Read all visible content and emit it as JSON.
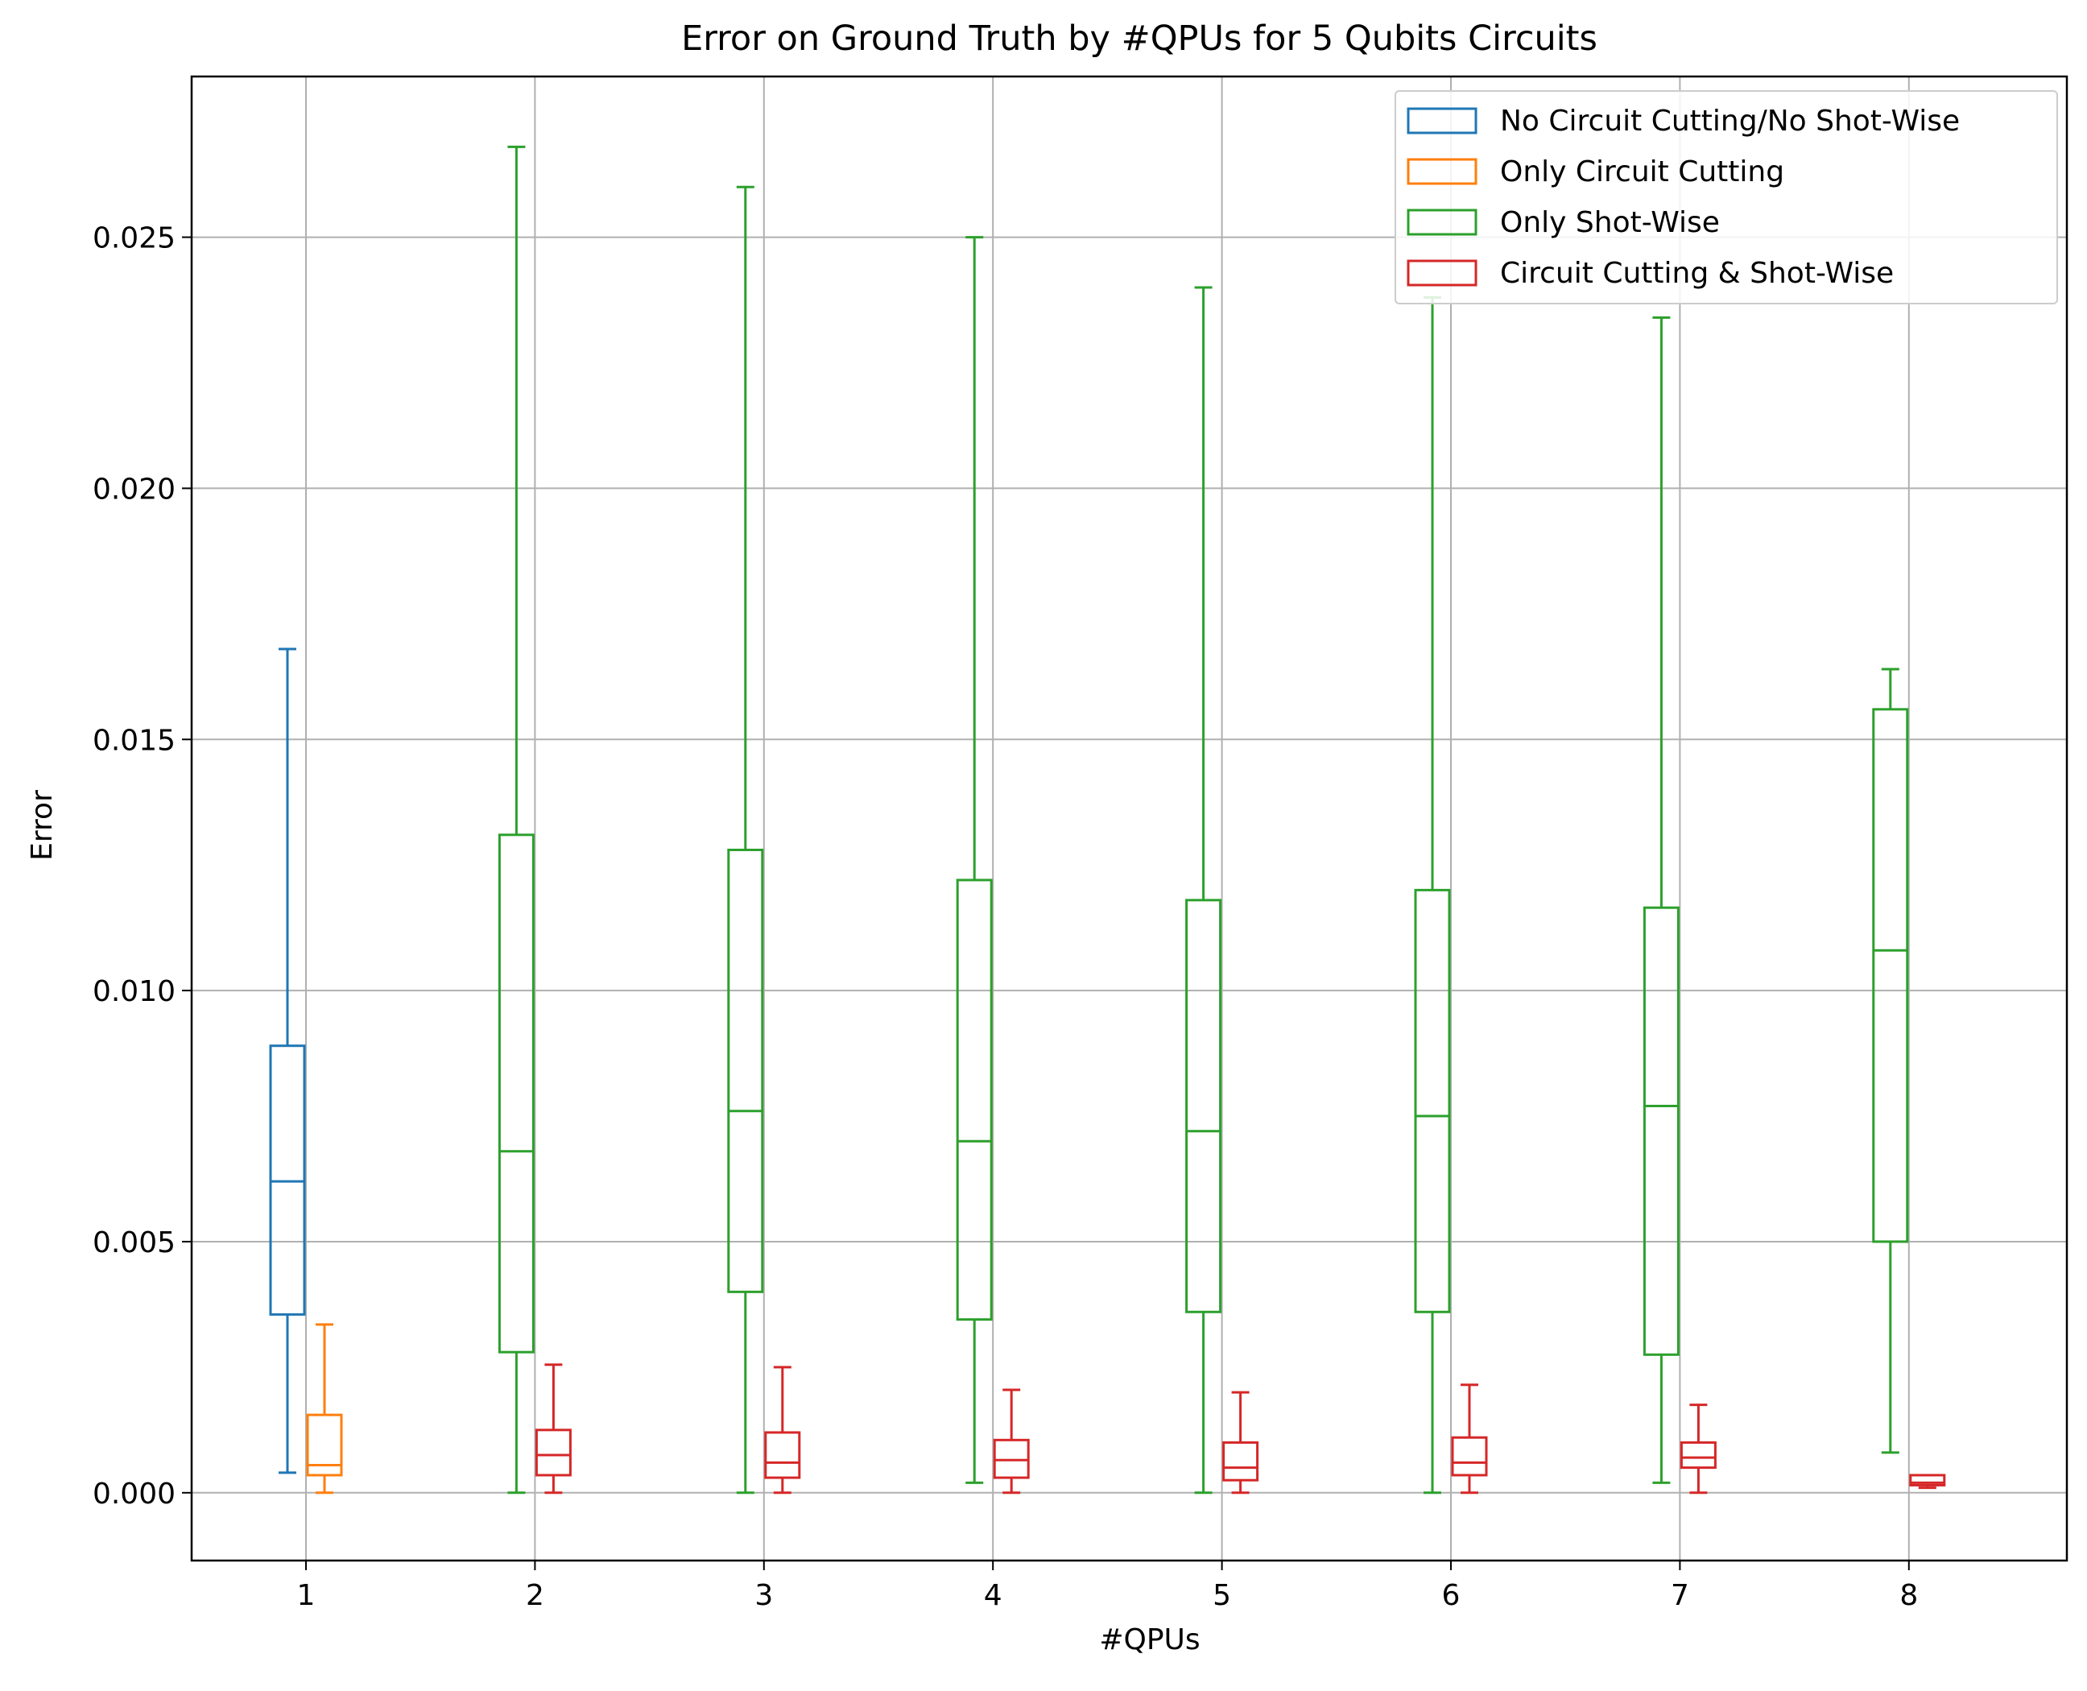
{
  "chart_data": {
    "type": "box",
    "title": "Error on Ground Truth by #QPUs for 5 Qubits Circuits",
    "xlabel": "#QPUs",
    "ylabel": "Error",
    "ylim": [
      -0.00135,
      0.0282
    ],
    "yticks": [
      0.0,
      0.005,
      0.01,
      0.015,
      0.02,
      0.025
    ],
    "ytick_labels": [
      "0.000",
      "0.005",
      "0.010",
      "0.015",
      "0.020",
      "0.025"
    ],
    "categories": [
      "1",
      "2",
      "3",
      "4",
      "5",
      "6",
      "7",
      "8"
    ],
    "grid": true,
    "legend_position": "top-right",
    "series": [
      {
        "name": "No Circuit Cutting/No Shot-Wise",
        "color": "#1f77b4",
        "boxes": [
          {
            "category": "1",
            "whisker_low": 0.0004,
            "q1": 0.00355,
            "median": 0.0062,
            "q3": 0.0089,
            "whisker_high": 0.0168
          }
        ]
      },
      {
        "name": "Only Circuit Cutting",
        "color": "#ff7f0e",
        "boxes": [
          {
            "category": "1",
            "whisker_low": 0.0,
            "q1": 0.00035,
            "median": 0.00055,
            "q3": 0.00155,
            "whisker_high": 0.00335
          }
        ]
      },
      {
        "name": "Only Shot-Wise",
        "color": "#2ca02c",
        "boxes": [
          {
            "category": "2",
            "whisker_low": 0.0,
            "q1": 0.0028,
            "median": 0.0068,
            "q3": 0.0131,
            "whisker_high": 0.0268
          },
          {
            "category": "3",
            "whisker_low": 0.0,
            "q1": 0.004,
            "median": 0.0076,
            "q3": 0.0128,
            "whisker_high": 0.026
          },
          {
            "category": "4",
            "whisker_low": 0.0002,
            "q1": 0.00345,
            "median": 0.007,
            "q3": 0.0122,
            "whisker_high": 0.025
          },
          {
            "category": "5",
            "whisker_low": 0.0,
            "q1": 0.0036,
            "median": 0.0072,
            "q3": 0.0118,
            "whisker_high": 0.024
          },
          {
            "category": "6",
            "whisker_low": 0.0,
            "q1": 0.0036,
            "median": 0.0075,
            "q3": 0.012,
            "whisker_high": 0.0238
          },
          {
            "category": "7",
            "whisker_low": 0.0002,
            "q1": 0.00275,
            "median": 0.0077,
            "q3": 0.01165,
            "whisker_high": 0.0234
          },
          {
            "category": "8",
            "whisker_low": 0.0008,
            "q1": 0.005,
            "median": 0.0108,
            "q3": 0.0156,
            "whisker_high": 0.0164
          }
        ]
      },
      {
        "name": "Circuit Cutting & Shot-Wise",
        "color": "#d62728",
        "boxes": [
          {
            "category": "2",
            "whisker_low": 0.0,
            "q1": 0.00035,
            "median": 0.00075,
            "q3": 0.00125,
            "whisker_high": 0.00255
          },
          {
            "category": "3",
            "whisker_low": 0.0,
            "q1": 0.0003,
            "median": 0.0006,
            "q3": 0.0012,
            "whisker_high": 0.0025
          },
          {
            "category": "4",
            "whisker_low": 0.0,
            "q1": 0.0003,
            "median": 0.00065,
            "q3": 0.00105,
            "whisker_high": 0.00205
          },
          {
            "category": "5",
            "whisker_low": 0.0,
            "q1": 0.00025,
            "median": 0.0005,
            "q3": 0.001,
            "whisker_high": 0.002
          },
          {
            "category": "6",
            "whisker_low": 0.0,
            "q1": 0.00035,
            "median": 0.0006,
            "q3": 0.0011,
            "whisker_high": 0.00215
          },
          {
            "category": "7",
            "whisker_low": 0.0,
            "q1": 0.0005,
            "median": 0.0007,
            "q3": 0.001,
            "whisker_high": 0.00175
          },
          {
            "category": "8",
            "whisker_low": 0.0001,
            "q1": 0.00015,
            "median": 0.0002,
            "q3": 0.00035,
            "whisker_high": 0.00035
          }
        ]
      }
    ]
  }
}
